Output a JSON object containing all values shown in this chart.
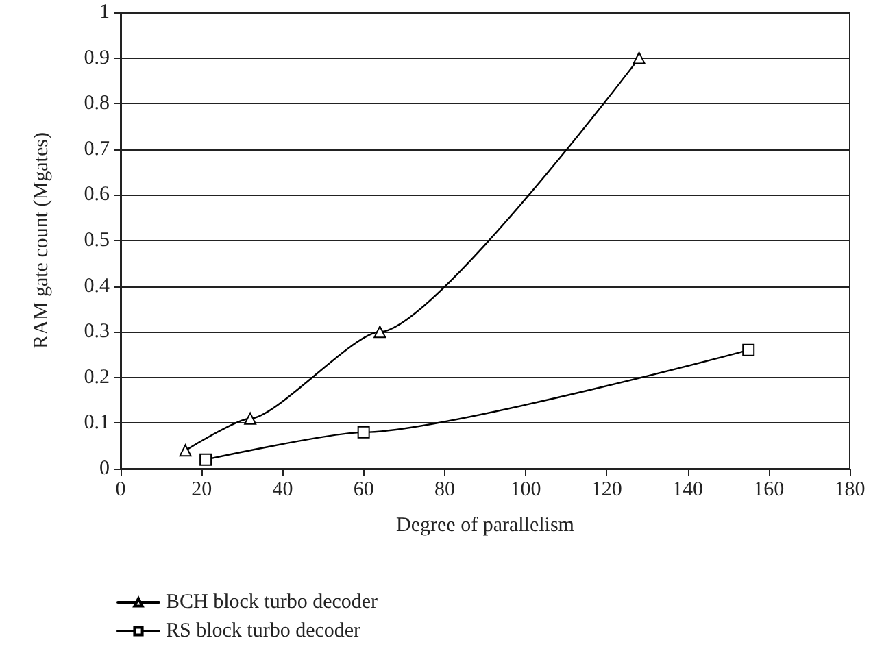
{
  "chart_data": {
    "type": "line",
    "xlabel": "Degree of parallelism",
    "ylabel": "RAM gate count (Mgates)",
    "series": [
      {
        "name": "BCH block turbo decoder",
        "color": "#000000",
        "marker": "triangle",
        "x": [
          16,
          32,
          64,
          128
        ],
        "values": [
          0.04,
          0.11,
          0.3,
          0.9
        ]
      },
      {
        "name": "RS block turbo decoder",
        "color": "#000000",
        "marker": "square",
        "x": [
          21,
          60,
          155
        ],
        "values": [
          0.02,
          0.08,
          0.26
        ]
      }
    ],
    "xlim": [
      0,
      180
    ],
    "xticks": [
      0,
      20,
      40,
      60,
      80,
      100,
      120,
      140,
      160,
      180
    ],
    "ylim": [
      0,
      1
    ],
    "yticks": [
      0,
      0.1,
      0.2,
      0.3,
      0.4,
      0.5,
      0.6,
      0.7,
      0.8,
      0.9,
      1
    ],
    "grid": "y",
    "legend": "bottom left",
    "line_style": "solid"
  }
}
